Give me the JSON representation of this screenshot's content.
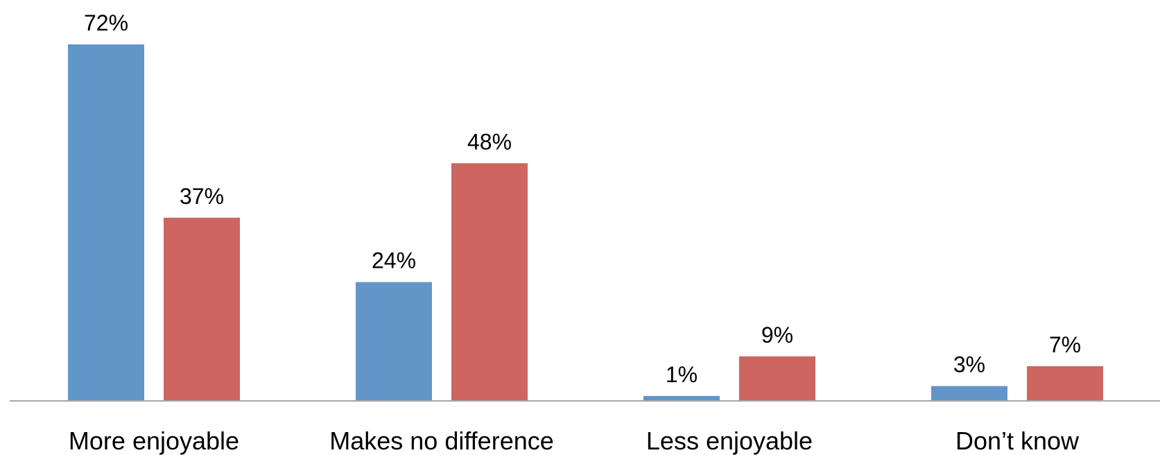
{
  "chart_data": {
    "type": "bar",
    "categories": [
      "More enjoyable",
      "Makes no difference",
      "Less enjoyable",
      "Don’t know"
    ],
    "series": [
      {
        "values": [
          72,
          24,
          1,
          3
        ],
        "labels": [
          "72%",
          "24%",
          "1%",
          "3%"
        ],
        "color": "#6296C9"
      },
      {
        "values": [
          37,
          48,
          9,
          7
        ],
        "labels": [
          "37%",
          "48%",
          "9%",
          "7%"
        ],
        "color": "#CD6560"
      }
    ],
    "ylim": [
      0,
      72
    ],
    "grid": false,
    "legend": "none",
    "axis_color": "#A6A6A6"
  }
}
